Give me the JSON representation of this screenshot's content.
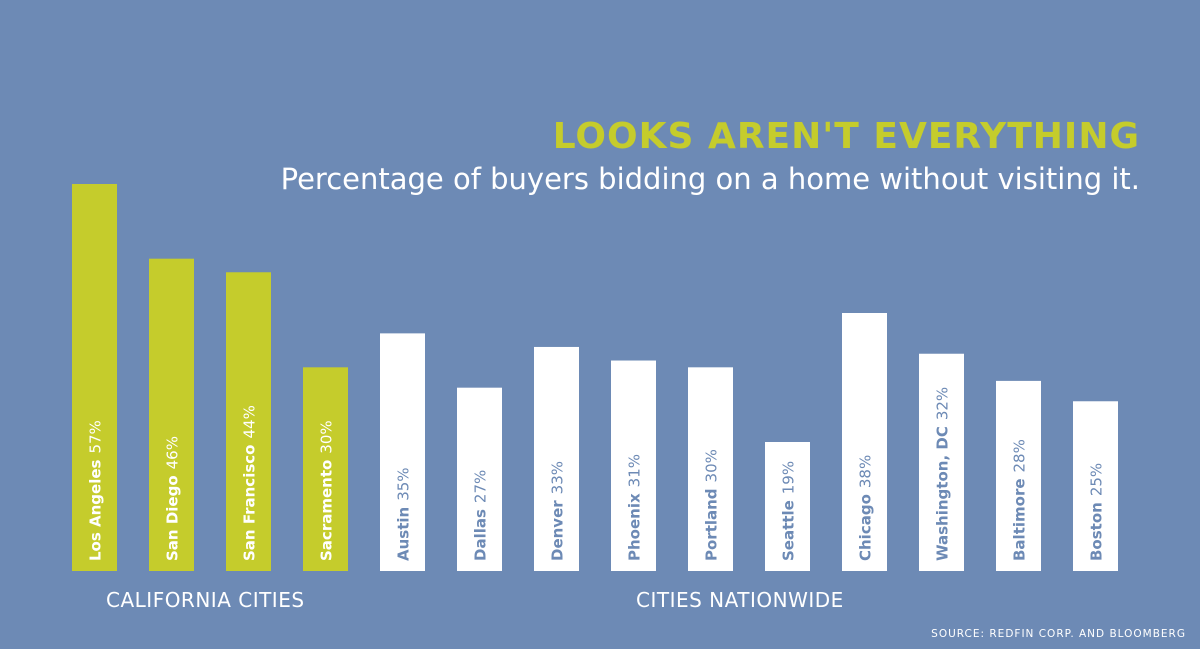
{
  "chart_data": {
    "type": "bar",
    "title": "LOOKS AREN'T EVERYTHING",
    "subtitle": "Percentage of buyers bidding on a home without visiting it.",
    "unit": "%",
    "categories": [
      "Los Angeles",
      "San Diego",
      "San Francisco",
      "Sacramento",
      "Austin",
      "Dallas",
      "Denver",
      "Phoenix",
      "Portland",
      "Seattle",
      "Chicago",
      "Washington, DC",
      "Baltimore",
      "Boston"
    ],
    "values": [
      57,
      46,
      44,
      30,
      35,
      27,
      33,
      31,
      30,
      19,
      38,
      32,
      28,
      25
    ],
    "groups": [
      {
        "label": "CALIFORNIA CITIES",
        "color": "#c5cc2c",
        "count": 4
      },
      {
        "label": "CITIES NATIONWIDE",
        "color": "#ffffff",
        "count": 10
      }
    ],
    "ylim": [
      0,
      57
    ],
    "grid": false,
    "source": "SOURCE: REDFIN CORP. AND BLOOMBERG"
  }
}
